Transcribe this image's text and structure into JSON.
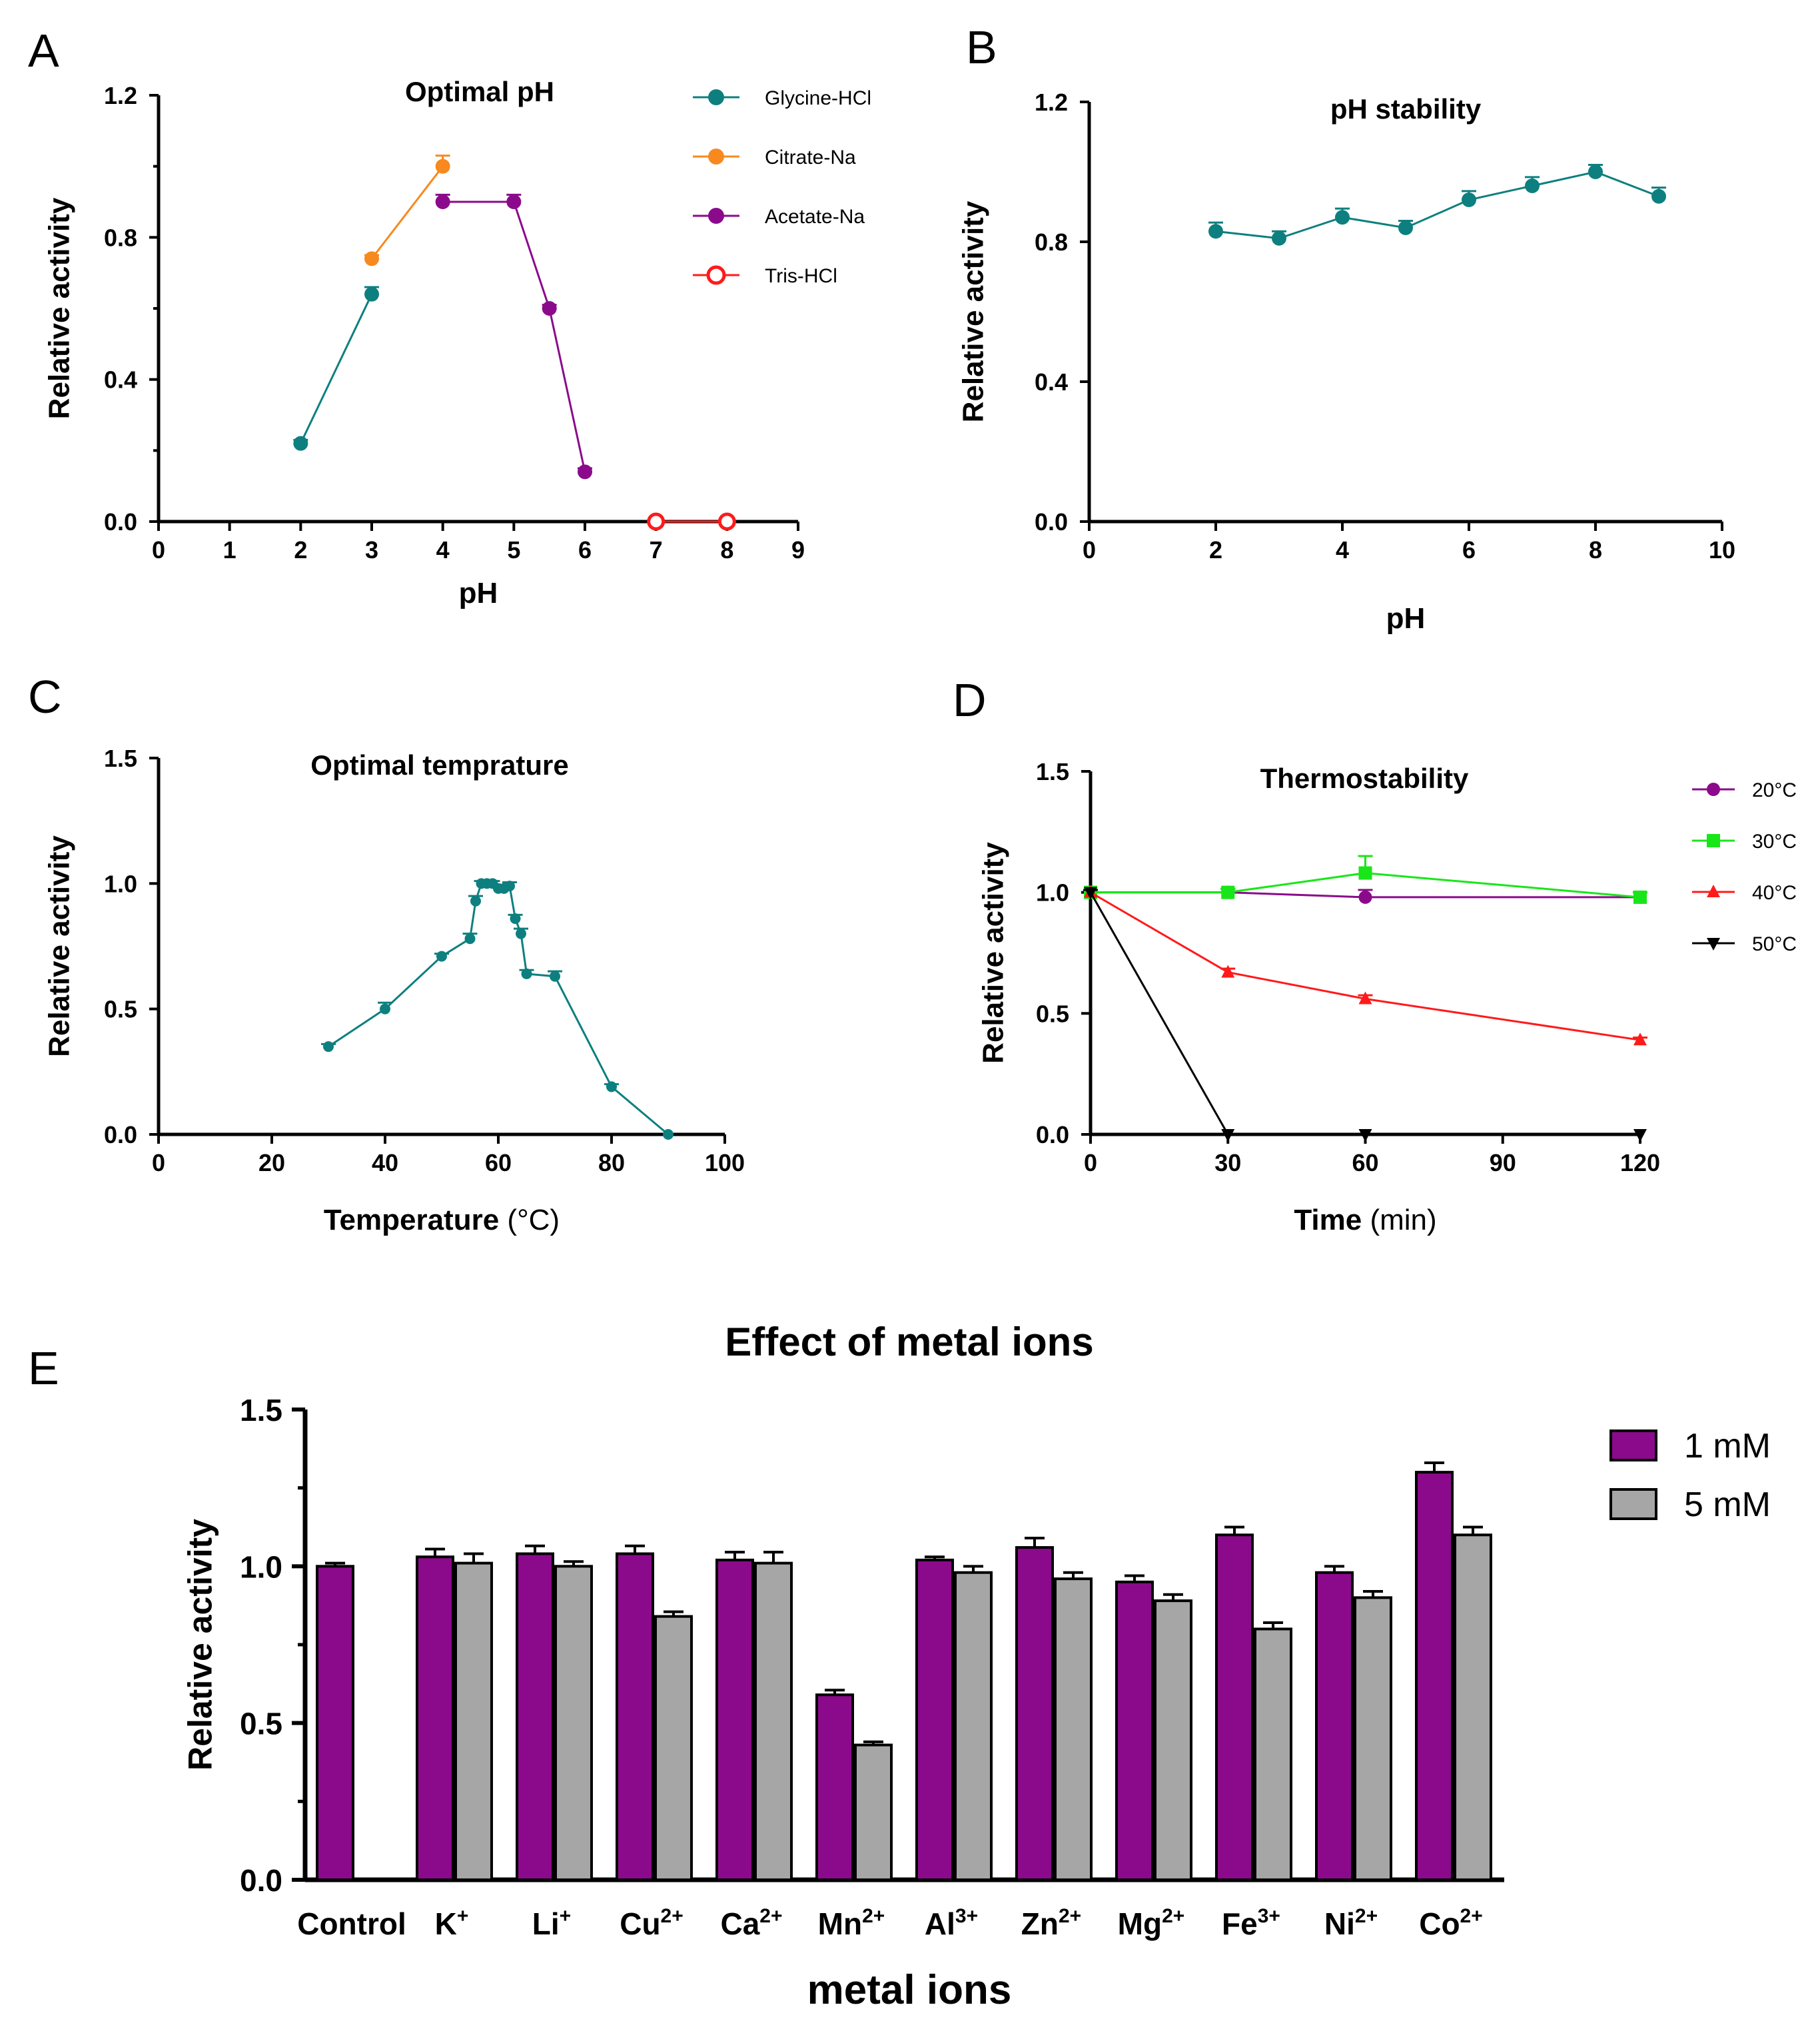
{
  "chart_data": [
    {
      "panel": "A",
      "type": "line",
      "title": "Optimal pH",
      "xlabel": "pH",
      "ylabel": "Relative activity",
      "xlim": [
        0,
        9
      ],
      "ylim": [
        0,
        1.2
      ],
      "xticks": [
        "0",
        "1",
        "2",
        "3",
        "4",
        "5",
        "6",
        "7",
        "8",
        "9"
      ],
      "yticks": [
        "0.0",
        "0.4",
        "0.8",
        "1.2"
      ],
      "series": [
        {
          "name": "Glycine-HCl",
          "color": "#0e7f7f",
          "marker": "circle",
          "x": [
            2,
            3
          ],
          "y": [
            0.22,
            0.64
          ],
          "err": [
            0.01,
            0.02
          ]
        },
        {
          "name": "Citrate-Na",
          "color": "#f7891f",
          "marker": "circle",
          "x": [
            3,
            4
          ],
          "y": [
            0.74,
            1.0
          ],
          "err": [
            0.01,
            0.03
          ]
        },
        {
          "name": "Acetate-Na",
          "color": "#8b0a8b",
          "marker": "circle",
          "x": [
            4,
            5,
            5.5,
            6
          ],
          "y": [
            0.9,
            0.9,
            0.6,
            0.14
          ],
          "err": [
            0.02,
            0.02,
            0.01,
            0.01
          ]
        },
        {
          "name": "Tris-HCl",
          "color": "#ff1a1a",
          "marker": "open-circle",
          "x": [
            7,
            8
          ],
          "y": [
            0.0,
            0.0
          ],
          "err": [
            0,
            0
          ]
        }
      ]
    },
    {
      "panel": "B",
      "type": "line",
      "title": "pH stability",
      "xlabel": "pH",
      "ylabel": "Relative activity",
      "xlim": [
        0,
        10
      ],
      "ylim": [
        0,
        1.2
      ],
      "xticks": [
        "0",
        "2",
        "4",
        "6",
        "8",
        "10"
      ],
      "yticks": [
        "0.0",
        "0.4",
        "0.8",
        "1.2"
      ],
      "series": [
        {
          "name": "pH stability",
          "color": "#0e7f7f",
          "marker": "circle",
          "x": [
            2,
            3,
            4,
            5,
            6,
            7,
            8,
            9
          ],
          "y": [
            0.83,
            0.81,
            0.87,
            0.84,
            0.92,
            0.96,
            1.0,
            0.93
          ],
          "err": [
            0.025,
            0.02,
            0.025,
            0.02,
            0.025,
            0.025,
            0.02,
            0.025
          ]
        }
      ]
    },
    {
      "panel": "C",
      "type": "line",
      "title": "Optimal temprature",
      "xlabel": "Temperature",
      "xlabel_unit": "(°C)",
      "ylabel": "Relative activity",
      "xlim": [
        0,
        100
      ],
      "ylim": [
        0,
        1.5
      ],
      "xticks": [
        "0",
        "20",
        "40",
        "60",
        "80",
        "100"
      ],
      "yticks": [
        "0.0",
        "0.5",
        "1.0",
        "1.5"
      ],
      "series": [
        {
          "name": "Optimal temprature",
          "color": "#0e7f7f",
          "marker": "circle",
          "x": [
            30,
            40,
            50,
            55,
            56,
            57,
            58,
            59,
            60,
            61,
            62,
            63,
            64,
            65,
            70,
            80,
            90
          ],
          "y": [
            0.35,
            0.5,
            0.71,
            0.78,
            0.93,
            1.0,
            1.0,
            1.0,
            0.98,
            0.98,
            0.99,
            0.86,
            0.8,
            0.64,
            0.63,
            0.19,
            0.0
          ],
          "err": [
            0.01,
            0.025,
            0.01,
            0.02,
            0.02,
            0.01,
            0.01,
            0.01,
            0.015,
            0.015,
            0.015,
            0.015,
            0.02,
            0.015,
            0.02,
            0.01,
            0
          ]
        }
      ]
    },
    {
      "panel": "D",
      "type": "line",
      "title": "Thermostability",
      "xlabel": "Time",
      "xlabel_unit": "(min)",
      "ylabel": "Relative activity",
      "xlim": [
        0,
        120
      ],
      "ylim": [
        0,
        1.5
      ],
      "xticks": [
        "0",
        "30",
        "60",
        "90",
        "120"
      ],
      "yticks": [
        "0.0",
        "0.5",
        "1.0",
        "1.5"
      ],
      "series": [
        {
          "name": "20°C",
          "color": "#8b0a8b",
          "marker": "circle",
          "x": [
            0,
            30,
            60,
            120
          ],
          "y": [
            1.0,
            1.0,
            0.98,
            0.98
          ],
          "err": [
            0.01,
            0.015,
            0.03,
            0.02
          ]
        },
        {
          "name": "30°C",
          "color": "#19e619",
          "marker": "square",
          "x": [
            0,
            30,
            60,
            120
          ],
          "y": [
            1.0,
            1.0,
            1.08,
            0.98
          ],
          "err": [
            0.01,
            0.015,
            0.07,
            0.02
          ]
        },
        {
          "name": "40°C",
          "color": "#ff1a1a",
          "marker": "triangle-up",
          "x": [
            0,
            30,
            60,
            120
          ],
          "y": [
            1.0,
            0.67,
            0.56,
            0.39
          ],
          "err": [
            0.01,
            0.015,
            0.015,
            0.01
          ]
        },
        {
          "name": "50°C",
          "color": "#000000",
          "marker": "triangle-down",
          "x": [
            0,
            30,
            60,
            120
          ],
          "y": [
            1.0,
            0.0,
            0.0,
            0.0
          ],
          "err": [
            0.01,
            0,
            0,
            0
          ]
        }
      ]
    },
    {
      "panel": "E",
      "type": "bar",
      "title": "Effect of metal ions",
      "xlabel": "metal ions",
      "ylabel": "Relative activity",
      "ylim": [
        0,
        1.5
      ],
      "yticks": [
        "0.0",
        "0.5",
        "1.0",
        "1.5"
      ],
      "categories": [
        {
          "base": "Control",
          "sup": ""
        },
        {
          "base": "K",
          "sup": "+"
        },
        {
          "base": "Li",
          "sup": "+"
        },
        {
          "base": "Cu",
          "sup": "2+"
        },
        {
          "base": "Ca",
          "sup": "2+"
        },
        {
          "base": "Mn",
          "sup": "2+"
        },
        {
          "base": "Al",
          "sup": "3+"
        },
        {
          "base": "Zn",
          "sup": "2+"
        },
        {
          "base": "Mg",
          "sup": "2+"
        },
        {
          "base": "Fe",
          "sup": "3+"
        },
        {
          "base": "Ni",
          "sup": "2+"
        },
        {
          "base": "Co",
          "sup": "2+"
        }
      ],
      "series": [
        {
          "name": "1 mM",
          "color": "#8b0a8b",
          "values": [
            1.0,
            1.03,
            1.04,
            1.04,
            1.02,
            0.59,
            1.02,
            1.06,
            0.95,
            1.1,
            0.98,
            1.3
          ],
          "err": [
            0.01,
            0.025,
            0.025,
            0.025,
            0.025,
            0.015,
            0.01,
            0.03,
            0.02,
            0.025,
            0.02,
            0.03
          ]
        },
        {
          "name": "5 mM",
          "color": "#a6a6a6",
          "values": [
            null,
            1.01,
            1.0,
            0.84,
            1.01,
            0.43,
            0.98,
            0.96,
            0.89,
            0.8,
            0.9,
            1.1
          ],
          "err": [
            0,
            0.03,
            0.015,
            0.015,
            0.035,
            0.01,
            0.02,
            0.02,
            0.02,
            0.02,
            0.02,
            0.025
          ]
        }
      ]
    }
  ]
}
